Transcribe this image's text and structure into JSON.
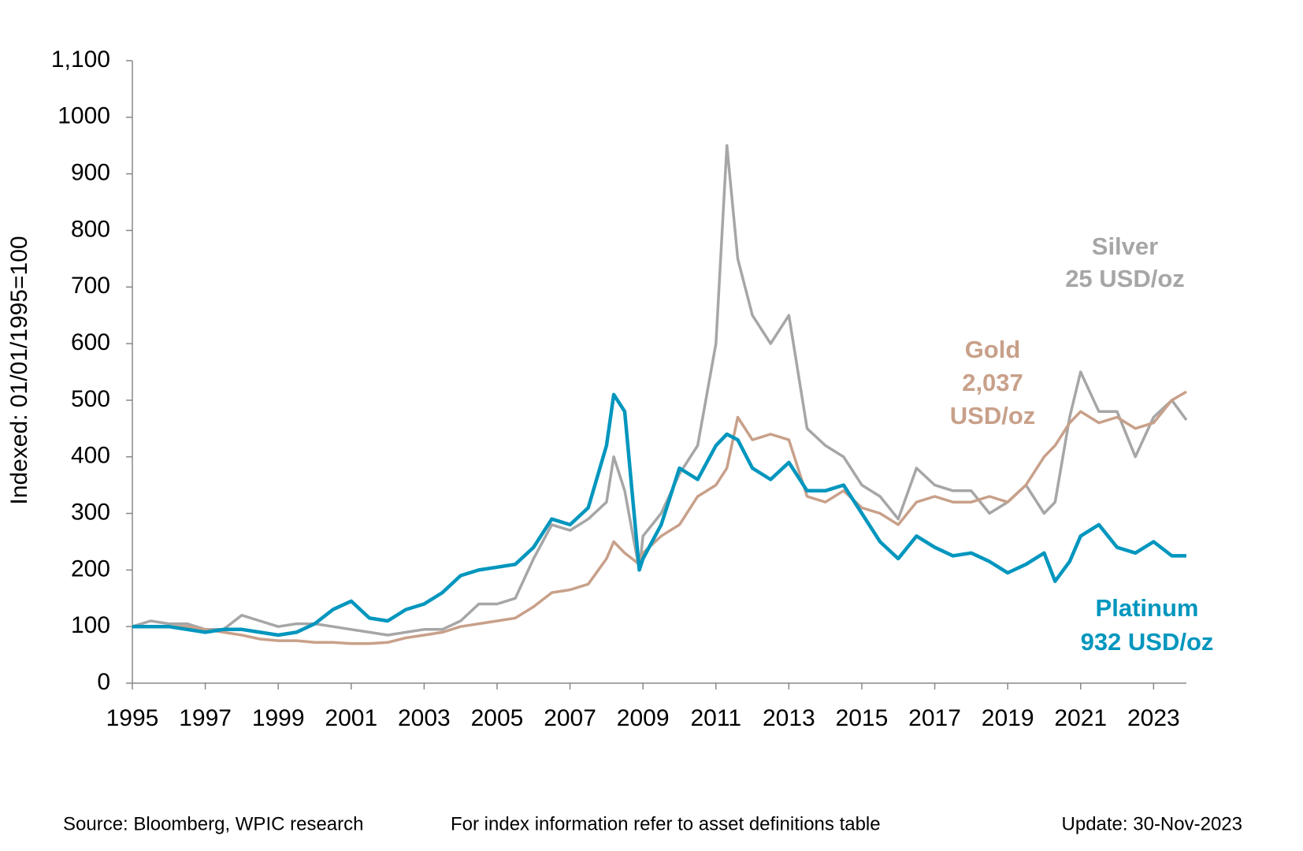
{
  "chart_data": {
    "type": "line",
    "y_label": "Indexed: 01/01/1995=100",
    "x": [
      1995,
      1995.5,
      1996,
      1996.5,
      1997,
      1997.5,
      1998,
      1998.5,
      1999,
      1999.5,
      2000,
      2000.5,
      2001,
      2001.5,
      2002,
      2002.5,
      2003,
      2003.5,
      2004,
      2004.5,
      2005,
      2005.5,
      2006,
      2006.5,
      2007,
      2007.5,
      2008,
      2008.2,
      2008.5,
      2008.9,
      2009,
      2009.5,
      2010,
      2010.5,
      2011,
      2011.3,
      2011.6,
      2012,
      2012.5,
      2013,
      2013.5,
      2014,
      2014.5,
      2015,
      2015.5,
      2016,
      2016.5,
      2017,
      2017.5,
      2018,
      2018.5,
      2019,
      2019.5,
      2020,
      2020.3,
      2020.7,
      2021,
      2021.5,
      2022,
      2022.5,
      2023,
      2023.5,
      2023.9
    ],
    "series": [
      {
        "name": "Platinum",
        "color": "#0096be",
        "values": [
          100,
          100,
          100,
          95,
          90,
          95,
          95,
          90,
          85,
          90,
          105,
          130,
          145,
          115,
          110,
          130,
          140,
          160,
          190,
          200,
          205,
          210,
          240,
          290,
          280,
          310,
          420,
          510,
          480,
          200,
          220,
          280,
          380,
          360,
          420,
          440,
          430,
          380,
          360,
          390,
          340,
          340,
          350,
          300,
          250,
          220,
          260,
          240,
          225,
          230,
          215,
          195,
          210,
          230,
          180,
          215,
          260,
          280,
          240,
          230,
          250,
          225,
          225
        ]
      },
      {
        "name": "Gold",
        "color": "#c8a08a",
        "values": [
          100,
          100,
          100,
          100,
          95,
          90,
          85,
          78,
          75,
          75,
          72,
          72,
          70,
          70,
          72,
          80,
          85,
          90,
          100,
          105,
          110,
          115,
          135,
          160,
          165,
          175,
          220,
          250,
          230,
          210,
          230,
          260,
          280,
          330,
          350,
          380,
          470,
          430,
          440,
          430,
          330,
          320,
          340,
          310,
          300,
          280,
          320,
          330,
          320,
          320,
          330,
          320,
          350,
          400,
          420,
          460,
          480,
          460,
          470,
          450,
          460,
          500,
          515
        ]
      },
      {
        "name": "Silver",
        "color": "#a6a6a6",
        "values": [
          100,
          110,
          105,
          105,
          95,
          95,
          120,
          110,
          100,
          105,
          105,
          100,
          95,
          90,
          85,
          90,
          95,
          95,
          110,
          140,
          140,
          150,
          220,
          280,
          270,
          290,
          320,
          400,
          340,
          200,
          260,
          300,
          370,
          420,
          600,
          950,
          750,
          650,
          600,
          650,
          450,
          420,
          400,
          350,
          330,
          290,
          380,
          350,
          340,
          340,
          300,
          320,
          350,
          300,
          320,
          470,
          550,
          480,
          480,
          400,
          470,
          500,
          465
        ]
      }
    ],
    "annotations": [
      {
        "series": "Silver",
        "color": "#a6a6a6",
        "lines": [
          "Silver",
          "25 USD/oz"
        ]
      },
      {
        "series": "Gold",
        "color": "#c8a08a",
        "lines": [
          "Gold",
          "2,037",
          "USD/oz"
        ]
      },
      {
        "series": "Platinum",
        "color": "#0096be",
        "lines": [
          "Platinum",
          "932 USD/oz"
        ]
      }
    ],
    "xlim": [
      1995,
      2023.9
    ],
    "xticks": [
      1995,
      1997,
      1999,
      2001,
      2003,
      2005,
      2007,
      2009,
      2011,
      2013,
      2015,
      2017,
      2019,
      2021,
      2023
    ],
    "ylim": [
      0,
      1100
    ],
    "yticks": [
      0,
      100,
      200,
      300,
      400,
      500,
      600,
      700,
      800,
      900,
      1000,
      {
        "value": 1100,
        "label": "1,100"
      }
    ],
    "grid": false
  },
  "footer": {
    "source": "Source: Bloomberg, WPIC research",
    "note": "For index information refer to asset definitions table",
    "update": "Update: 30-Nov-2023"
  }
}
